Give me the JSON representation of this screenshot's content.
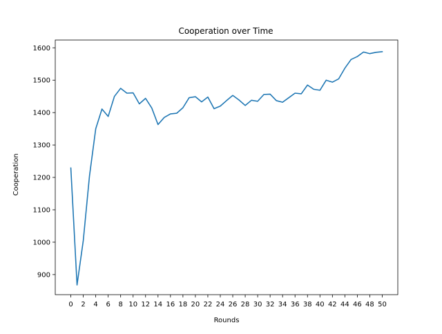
{
  "chart_data": {
    "type": "line",
    "title": "Cooperation over Time",
    "xlabel": "Rounds",
    "ylabel": "Cooperation",
    "xlim": [
      -2.5,
      52.5
    ],
    "ylim": [
      838,
      1624
    ],
    "grid": false,
    "legend": "none",
    "xticks": [
      0,
      2,
      4,
      6,
      8,
      10,
      12,
      14,
      16,
      18,
      20,
      22,
      24,
      26,
      28,
      30,
      32,
      34,
      36,
      38,
      40,
      42,
      44,
      46,
      48,
      50
    ],
    "yticks": [
      900,
      1000,
      1100,
      1200,
      1300,
      1400,
      1500,
      1600
    ],
    "series": [
      {
        "color": "#1f77b4",
        "x": [
          0,
          1,
          2,
          3,
          4,
          5,
          6,
          7,
          8,
          9,
          10,
          11,
          12,
          13,
          14,
          15,
          16,
          17,
          18,
          19,
          20,
          21,
          22,
          23,
          24,
          25,
          26,
          27,
          28,
          29,
          30,
          31,
          32,
          33,
          34,
          35,
          36,
          37,
          38,
          39,
          40,
          41,
          42,
          43,
          44,
          45,
          46,
          47,
          48,
          49,
          50
        ],
        "values": [
          1229,
          868,
          1005,
          1205,
          1350,
          1411,
          1388,
          1450,
          1475,
          1460,
          1461,
          1427,
          1444,
          1414,
          1363,
          1385,
          1396,
          1398,
          1415,
          1446,
          1449,
          1433,
          1448,
          1412,
          1420,
          1437,
          1453,
          1439,
          1422,
          1438,
          1435,
          1456,
          1457,
          1437,
          1432,
          1446,
          1460,
          1458,
          1485,
          1472,
          1469,
          1500,
          1494,
          1504,
          1537,
          1564,
          1573,
          1587,
          1582,
          1586,
          1588
        ]
      }
    ]
  }
}
